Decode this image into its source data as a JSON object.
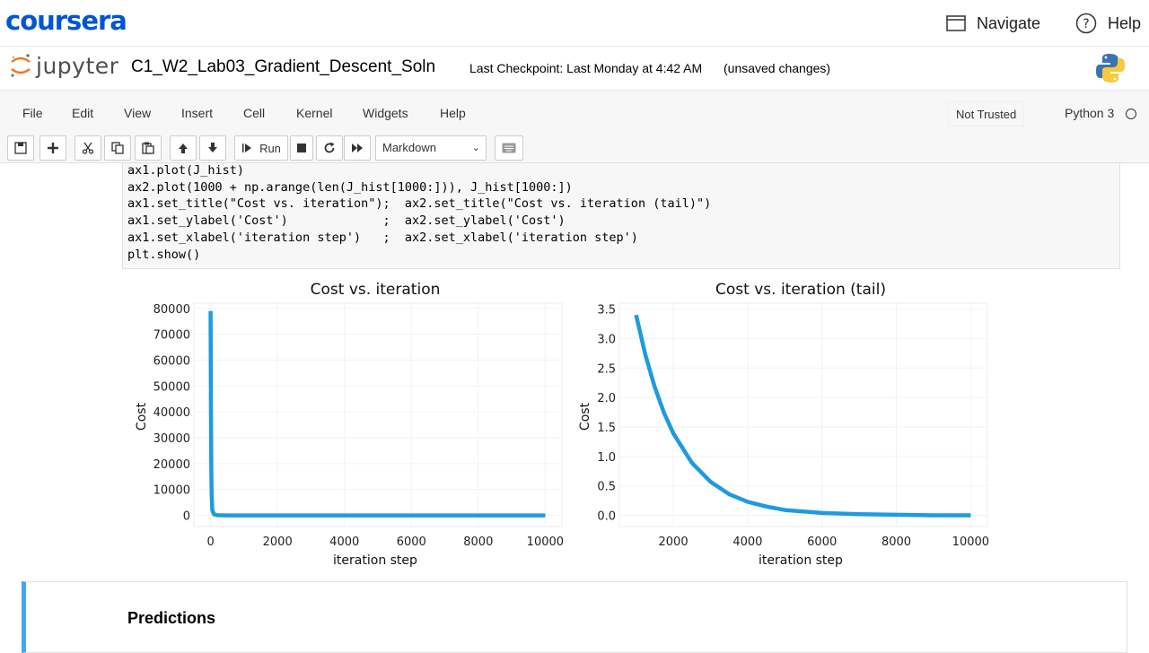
{
  "coursera": {
    "logo": "coursera",
    "navigate_label": "Navigate",
    "help_label": "Help"
  },
  "jupyter": {
    "logo_text": "jupyter",
    "notebook_name": "C1_W2_Lab03_Gradient_Descent_Soln",
    "checkpoint": "Last Checkpoint: Last Monday at 4:42 AM",
    "unsaved": "(unsaved changes)"
  },
  "menu": {
    "items": [
      "File",
      "Edit",
      "View",
      "Insert",
      "Cell",
      "Kernel",
      "Widgets",
      "Help"
    ],
    "not_trusted": "Not Trusted",
    "kernel": "Python 3"
  },
  "toolbar": {
    "run_label": "Run",
    "cell_type": "Markdown",
    "icons": [
      "save-icon",
      "plus-icon",
      "cut-icon",
      "copy-icon",
      "paste-icon",
      "arrow-up-icon",
      "arrow-down-icon",
      "run-icon",
      "stop-icon",
      "restart-icon",
      "fast-forward-icon",
      "keyboard-icon"
    ]
  },
  "code": {
    "lines": [
      "ax1.plot(J_hist)",
      "ax2.plot(1000 + np.arange(len(J_hist[1000:])), J_hist[1000:])",
      "ax1.set_title(\"Cost vs. iteration\");  ax2.set_title(\"Cost vs. iteration (tail)\")",
      "ax1.set_ylabel('Cost')             ;  ax2.set_ylabel('Cost')",
      "ax1.set_xlabel('iteration step')   ;  ax2.set_xlabel('iteration step')",
      "plt.show()"
    ]
  },
  "chart_data": [
    {
      "type": "line",
      "title": "Cost vs. iteration",
      "xlabel": "iteration step",
      "ylabel": "Cost",
      "xlim": [
        0,
        10000
      ],
      "ylim": [
        0,
        80000
      ],
      "x_ticks": [
        "0",
        "2000",
        "4000",
        "6000",
        "8000",
        "10000"
      ],
      "y_ticks": [
        "0",
        "10000",
        "20000",
        "30000",
        "40000",
        "50000",
        "60000",
        "70000",
        "80000"
      ],
      "grid": true,
      "color": "#1f9ae0",
      "series": [
        {
          "x": [
            0,
            10,
            20,
            30,
            50,
            100,
            200,
            500,
            1000,
            2000,
            4000,
            6000,
            8000,
            10000
          ],
          "y": [
            79000,
            40000,
            18000,
            8000,
            2000,
            400,
            50,
            5,
            3.4,
            1.4,
            0.2,
            0.03,
            0.01,
            0.0
          ]
        }
      ]
    },
    {
      "type": "line",
      "title": "Cost vs. iteration (tail)",
      "xlabel": "iteration step",
      "ylabel": "Cost",
      "xlim": [
        1000,
        10000
      ],
      "ylim": [
        0,
        3.5
      ],
      "x_ticks": [
        "2000",
        "4000",
        "6000",
        "8000",
        "10000"
      ],
      "y_ticks": [
        "0.0",
        "0.5",
        "1.0",
        "1.5",
        "2.0",
        "2.5",
        "3.0",
        "3.5"
      ],
      "grid": true,
      "color": "#1f9ae0",
      "series": [
        {
          "x": [
            1000,
            1250,
            1500,
            1750,
            2000,
            2500,
            3000,
            3500,
            4000,
            4500,
            5000,
            6000,
            7000,
            8000,
            9000,
            10000
          ],
          "y": [
            3.4,
            2.72,
            2.18,
            1.74,
            1.39,
            0.89,
            0.57,
            0.36,
            0.23,
            0.15,
            0.09,
            0.04,
            0.02,
            0.01,
            0.0,
            0.0
          ]
        }
      ]
    }
  ],
  "markdown": {
    "heading": "Predictions"
  }
}
